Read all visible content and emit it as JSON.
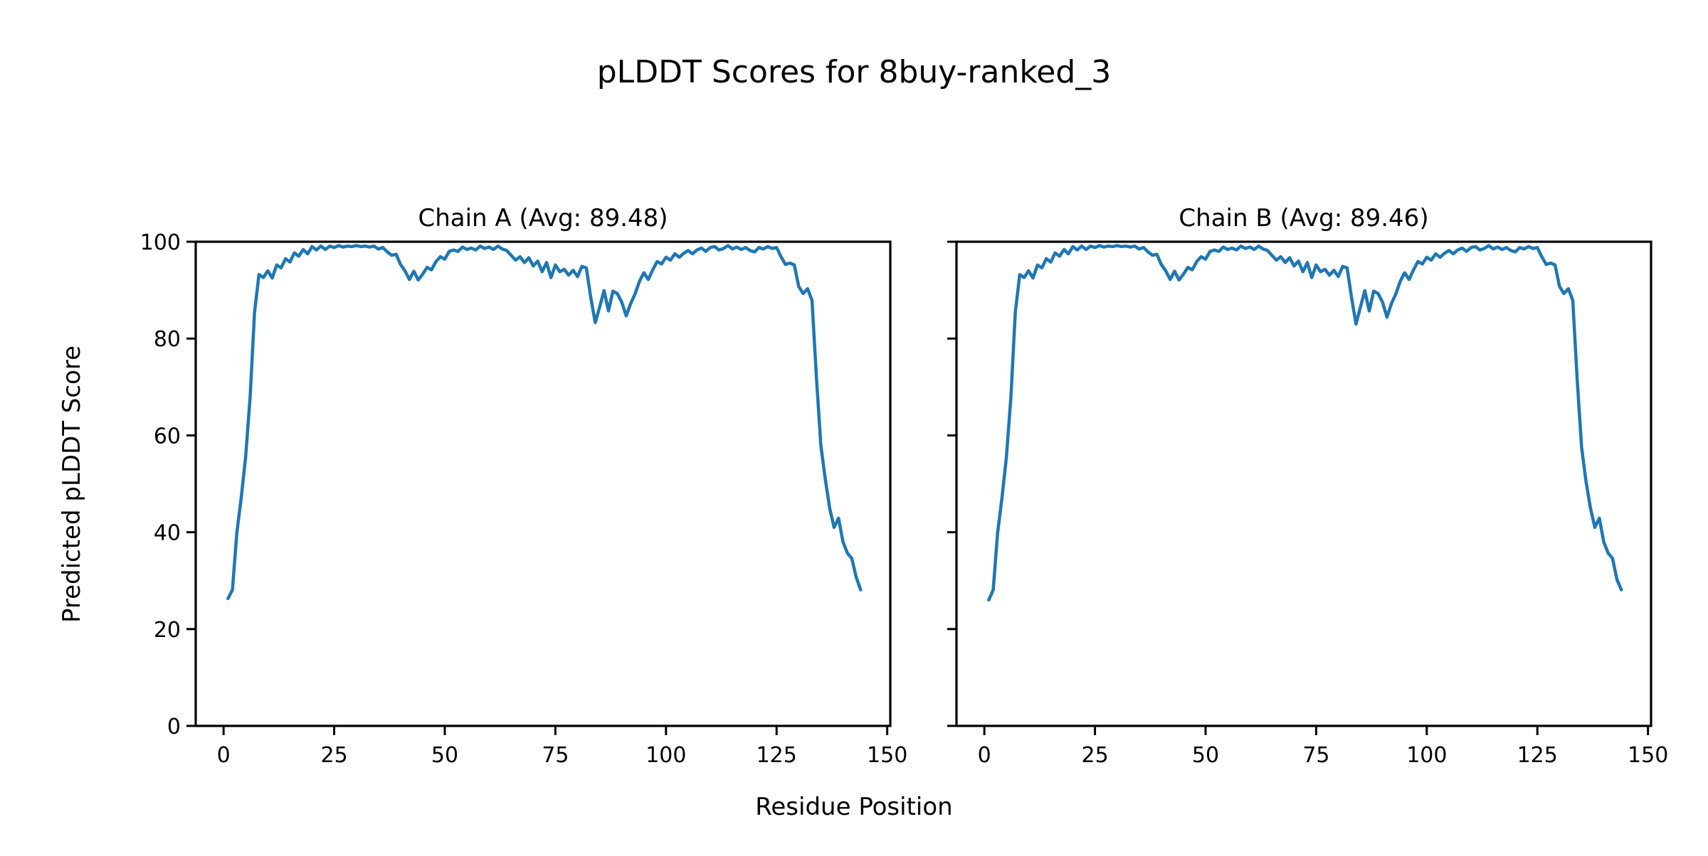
{
  "figure": {
    "title": "pLDDT Scores for 8buy-ranked_3",
    "xlabel": "Residue Position",
    "ylabel": "Predicted pLDDT Score",
    "background_color": "#ffffff",
    "text_color": "#000000",
    "spine_color": "#000000"
  },
  "chart_data": [
    {
      "type": "line",
      "title": "Chain A (Avg: 89.48)",
      "chain": "A",
      "avg_label": "89.48",
      "line_color": "#1f77b4",
      "x_start": 1,
      "xlim": [
        -6.3,
        150.7
      ],
      "ylim": [
        0,
        100
      ],
      "xticks": [
        0,
        25,
        50,
        75,
        100,
        125,
        150
      ],
      "yticks": [
        0,
        20,
        40,
        60,
        80,
        100
      ],
      "show_ytick_labels": true,
      "grid": false,
      "legend": "none",
      "y": [
        26.3,
        28.1,
        39.9,
        47.2,
        55.6,
        68.0,
        85.5,
        93.2,
        92.6,
        94.0,
        92.5,
        95.2,
        94.6,
        96.5,
        95.8,
        97.7,
        97.0,
        98.4,
        97.5,
        99.0,
        98.3,
        99.1,
        98.4,
        99.1,
        98.8,
        99.2,
        98.9,
        99.1,
        99.0,
        99.2,
        99.0,
        99.1,
        98.9,
        99.1,
        98.5,
        98.8,
        97.9,
        97.2,
        97.4,
        95.3,
        94.0,
        92.2,
        93.9,
        92.1,
        93.3,
        94.7,
        94.2,
        95.9,
        96.9,
        96.4,
        98.0,
        98.3,
        98.0,
        98.9,
        98.4,
        98.7,
        98.3,
        99.1,
        98.6,
        98.9,
        98.4,
        99.1,
        98.5,
        98.2,
        97.2,
        96.2,
        96.9,
        95.7,
        96.7,
        95.0,
        96.0,
        93.8,
        95.7,
        92.6,
        95.2,
        93.8,
        94.3,
        93.1,
        94.1,
        92.8,
        94.9,
        94.6,
        88.5,
        83.3,
        86.5,
        89.9,
        85.7,
        89.8,
        89.3,
        87.5,
        84.7,
        87.2,
        89.2,
        91.8,
        93.6,
        92.2,
        94.2,
        95.9,
        95.4,
        96.8,
        96.2,
        97.5,
        96.8,
        97.6,
        98.2,
        97.5,
        98.3,
        98.7,
        98.0,
        98.8,
        99.0,
        98.3,
        98.6,
        99.2,
        98.5,
        98.9,
        98.4,
        98.8,
        98.2,
        97.9,
        98.8,
        98.5,
        99.0,
        98.6,
        98.8,
        96.9,
        95.3,
        95.6,
        95.2,
        90.8,
        89.3,
        90.3,
        87.9,
        72.0,
        58.0,
        51.0,
        45.0,
        41.0,
        42.9,
        38.0,
        35.7,
        34.6,
        30.7,
        28.1
      ]
    },
    {
      "type": "line",
      "title": "Chain B (Avg: 89.46)",
      "chain": "B",
      "avg_label": "89.46",
      "line_color": "#1f77b4",
      "x_start": 1,
      "xlim": [
        -6.3,
        150.7
      ],
      "ylim": [
        0,
        100
      ],
      "xticks": [
        0,
        25,
        50,
        75,
        100,
        125,
        150
      ],
      "yticks": [
        0,
        20,
        40,
        60,
        80,
        100
      ],
      "show_ytick_labels": false,
      "grid": false,
      "legend": "none",
      "y": [
        26.0,
        28.1,
        39.9,
        47.2,
        55.6,
        68.0,
        85.5,
        93.2,
        92.6,
        94.0,
        92.5,
        95.2,
        94.6,
        96.5,
        95.8,
        97.7,
        97.0,
        98.4,
        97.5,
        99.0,
        98.3,
        99.1,
        98.4,
        99.1,
        98.8,
        99.2,
        98.9,
        99.1,
        99.0,
        99.2,
        99.0,
        99.1,
        98.9,
        99.1,
        98.5,
        98.8,
        97.9,
        97.2,
        97.4,
        95.3,
        94.0,
        92.2,
        93.9,
        92.1,
        93.3,
        94.7,
        94.2,
        95.9,
        96.9,
        96.4,
        98.0,
        98.3,
        98.0,
        98.9,
        98.4,
        98.7,
        98.3,
        99.1,
        98.6,
        98.9,
        98.4,
        99.1,
        98.5,
        98.2,
        97.2,
        96.2,
        96.9,
        95.7,
        96.7,
        95.0,
        96.0,
        93.8,
        95.7,
        92.6,
        95.2,
        93.8,
        94.3,
        93.1,
        94.1,
        92.8,
        94.9,
        94.6,
        88.5,
        83.0,
        86.5,
        89.9,
        85.7,
        89.8,
        89.3,
        87.5,
        84.4,
        87.2,
        89.2,
        91.8,
        93.6,
        92.2,
        94.2,
        95.9,
        95.4,
        96.8,
        96.2,
        97.5,
        96.8,
        97.6,
        98.2,
        97.5,
        98.3,
        98.7,
        98.0,
        98.8,
        99.0,
        98.3,
        98.6,
        99.2,
        98.5,
        98.9,
        98.4,
        98.8,
        98.2,
        97.9,
        98.8,
        98.5,
        99.0,
        98.6,
        98.8,
        96.9,
        95.3,
        95.6,
        95.2,
        90.8,
        89.3,
        90.3,
        87.9,
        71.5,
        57.5,
        50.5,
        45.0,
        41.0,
        42.9,
        38.0,
        35.7,
        34.6,
        30.2,
        28.1
      ]
    }
  ]
}
